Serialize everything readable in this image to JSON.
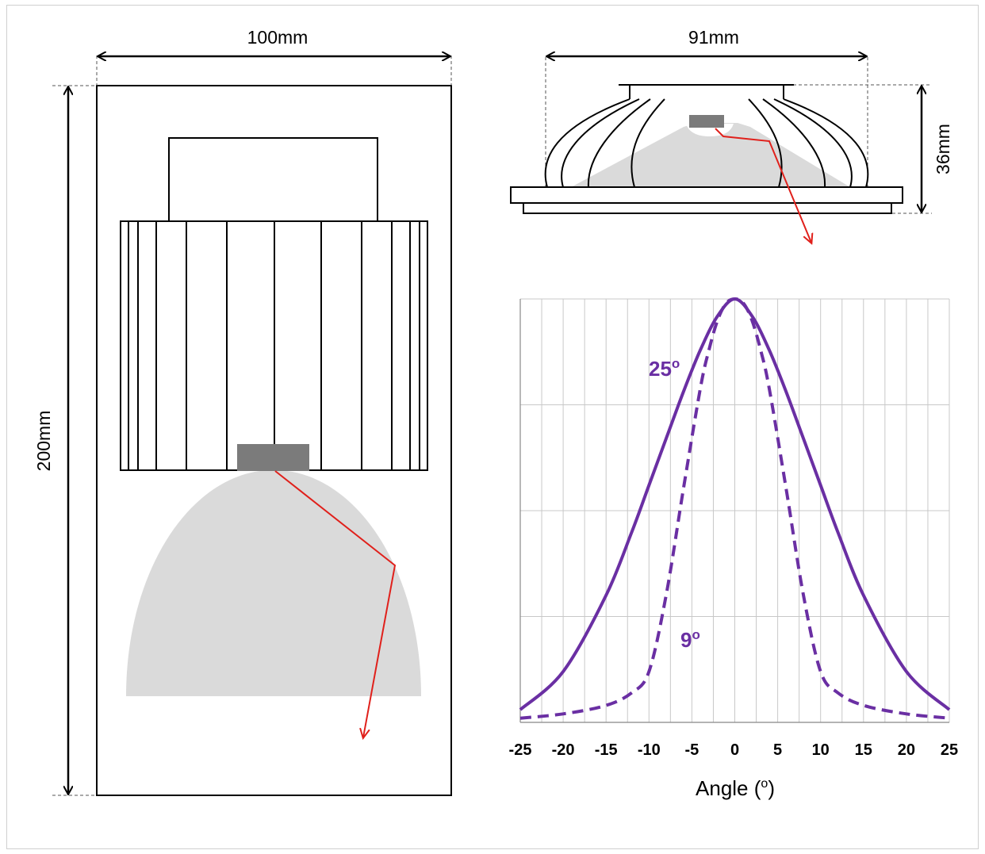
{
  "dimensions": {
    "reflector_width": "100mm",
    "reflector_height": "200mm",
    "tir_width": "91mm",
    "tir_height": "36mm"
  },
  "colors": {
    "series": "#6a2fa3",
    "ray": "#e0201b",
    "beam": "#dadada",
    "led": "#7b7b7b",
    "grid": "#c8c8c8"
  },
  "chart_data": {
    "type": "line",
    "xlabel": "Angle (o)",
    "ylabel": "",
    "xlim": [
      -25,
      25
    ],
    "ylim": [
      0,
      1
    ],
    "x_ticks": [
      "-25",
      "-20",
      "-15",
      "-10",
      "-5",
      "0",
      "5",
      "10",
      "15",
      "20",
      "25"
    ],
    "grid": true,
    "series": [
      {
        "name": "25o",
        "style": "solid",
        "x": [
          -25,
          -20,
          -15,
          -12,
          -10,
          -8,
          -6,
          -4,
          -2,
          0,
          2,
          4,
          6,
          8,
          10,
          12,
          15,
          20,
          25
        ],
        "values": [
          0.03,
          0.12,
          0.3,
          0.45,
          0.56,
          0.67,
          0.78,
          0.88,
          0.96,
          1.0,
          0.96,
          0.88,
          0.78,
          0.67,
          0.56,
          0.45,
          0.3,
          0.12,
          0.03
        ]
      },
      {
        "name": "9o",
        "style": "dashed",
        "x": [
          -25,
          -20,
          -15,
          -12,
          -10,
          -8,
          -6,
          -4,
          -3,
          -2,
          -1,
          0,
          1,
          2,
          3,
          4,
          6,
          8,
          10,
          12,
          15,
          20,
          25
        ],
        "values": [
          0.01,
          0.02,
          0.04,
          0.07,
          0.12,
          0.3,
          0.55,
          0.79,
          0.88,
          0.95,
          0.99,
          1.0,
          0.99,
          0.95,
          0.88,
          0.79,
          0.55,
          0.3,
          0.12,
          0.07,
          0.04,
          0.02,
          0.01
        ]
      }
    ]
  }
}
